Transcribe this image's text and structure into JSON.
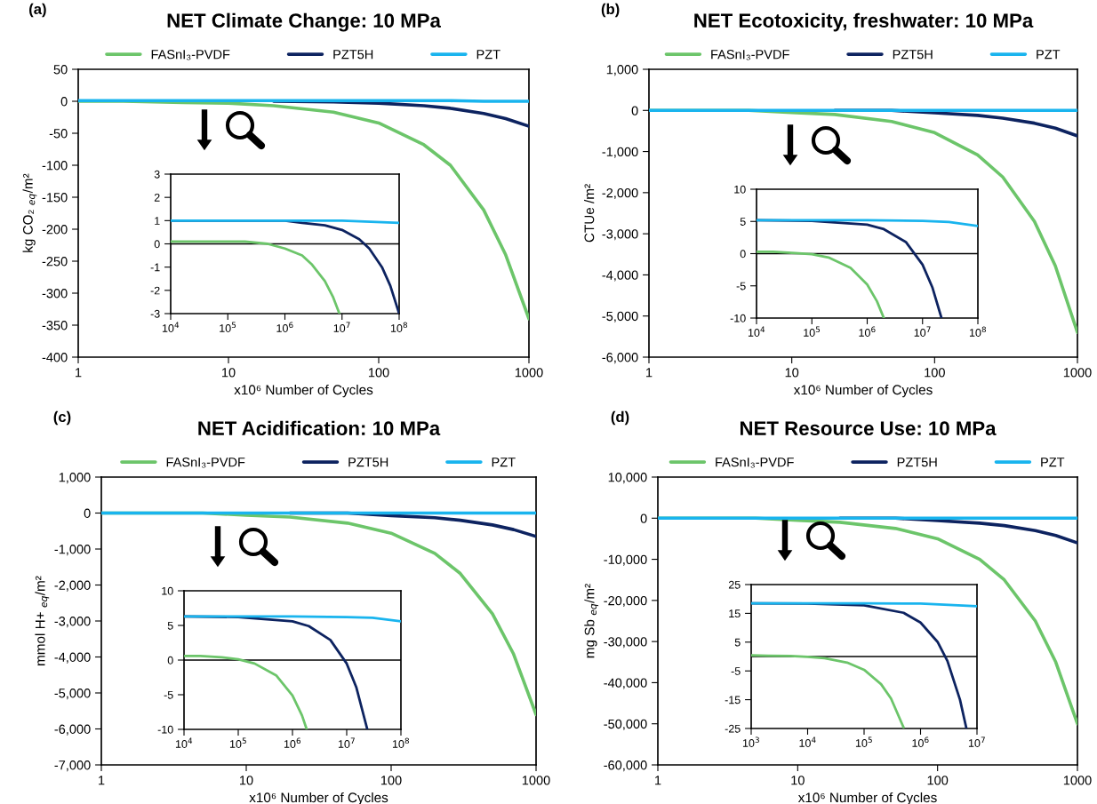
{
  "chart_data": [
    {
      "type": "line",
      "title": "NET Climate Change: 10 MPa",
      "xlabel": "x10⁶ Number of Cycles",
      "ylabel": "kg CO₂ $_{eq}$/m²",
      "annotations": [
        "(a)"
      ],
      "log": "x",
      "legend": "top",
      "xlim": [
        1,
        1000
      ],
      "xticks": [
        1,
        10,
        100,
        1000
      ],
      "ylim": [
        -400,
        50
      ],
      "yticks": [
        -400,
        -350,
        -300,
        -250,
        -200,
        -150,
        -100,
        -50,
        0,
        50
      ],
      "series": [
        {
          "name": "FASnI₃-PVDF",
          "color": "#6cc56a",
          "x": [
            1,
            2,
            5,
            10,
            20,
            50,
            100,
            200,
            300,
            500,
            700,
            1000
          ],
          "values": [
            0,
            0,
            -2,
            -3,
            -7,
            -17,
            -34,
            -68,
            -100,
            -170,
            -240,
            -340
          ]
        },
        {
          "name": "PZT5H",
          "color": "#0d2360",
          "x": [
            20,
            50,
            100,
            200,
            300,
            500,
            700,
            1000
          ],
          "values": [
            0,
            -1,
            -3,
            -7,
            -11,
            -19,
            -27,
            -39
          ]
        },
        {
          "name": "PZT",
          "color": "#19b4ee",
          "x": [
            1,
            2,
            5,
            10,
            20,
            50,
            100,
            200,
            300,
            500,
            700,
            1000
          ],
          "values": [
            1,
            1,
            1,
            1,
            1,
            1,
            1,
            1,
            1,
            0,
            0,
            0
          ]
        }
      ]
    },
    {
      "type": "line",
      "log": "x",
      "xlim": [
        10000,
        100000000
      ],
      "xticks": [
        {
          "value": 10000,
          "label": "10$^{4}$"
        },
        {
          "value": 100000,
          "label": "10$^{5}$"
        },
        {
          "value": 1000000,
          "label": "10$^{6}$"
        },
        {
          "value": 10000000,
          "label": "10$^{7}$"
        },
        {
          "value": 100000000,
          "label": "10$^{8}$"
        }
      ],
      "ylim": [
        -3,
        3
      ],
      "yticks": [
        -3,
        -2,
        -1,
        0,
        1,
        2,
        3
      ],
      "ref_lines": [
        {
          "axis": "y",
          "value": 0,
          "color": "#000000"
        }
      ],
      "series": [
        {
          "color": "#6cc56a",
          "x": [
            10000,
            20000,
            50000,
            100000,
            200000,
            500000,
            1000000,
            2000000,
            3000000,
            5000000,
            7000000,
            9000000
          ],
          "values": [
            0.1,
            0.1,
            0.1,
            0.1,
            0.1,
            0,
            -0.2,
            -0.5,
            -0.9,
            -1.6,
            -2.3,
            -3
          ]
        },
        {
          "color": "#0d2360",
          "x": [
            10000,
            100000,
            1000000,
            2000000,
            5000000,
            10000000,
            20000000,
            30000000,
            50000000,
            70000000,
            100000000
          ],
          "values": [
            1,
            1,
            1,
            0.9,
            0.8,
            0.6,
            0.2,
            -0.2,
            -1,
            -1.8,
            -3
          ]
        },
        {
          "color": "#19b4ee",
          "x": [
            10000,
            1000000,
            10000000,
            100000000
          ],
          "values": [
            1,
            1,
            1,
            0.9
          ]
        }
      ]
    },
    {
      "type": "line",
      "title": "NET Ecotoxicity, freshwater: 10 MPa",
      "xlabel": "x10⁶ Number of Cycles",
      "ylabel": "CTUe /m²",
      "annotations": [
        "(b)"
      ],
      "log": "x",
      "legend": "top",
      "xlim": [
        1,
        1000
      ],
      "xticks": [
        1,
        10,
        100,
        1000
      ],
      "ylim": [
        -6000,
        1000
      ],
      "yticks": [
        {
          "value": -6000,
          "label": "-6,000"
        },
        {
          "value": -5000,
          "label": "-5,000"
        },
        {
          "value": -4000,
          "label": "-4,000"
        },
        {
          "value": -3000,
          "label": "-3,000"
        },
        {
          "value": -2000,
          "label": "-2,000"
        },
        {
          "value": -1000,
          "label": "-1,000"
        },
        0,
        {
          "value": 1000,
          "label": "1,000"
        }
      ],
      "series": [
        {
          "name": "FASnI₃-PVDF",
          "color": "#6cc56a",
          "x": [
            1,
            2,
            5,
            10,
            20,
            50,
            100,
            200,
            300,
            500,
            700,
            1000
          ],
          "values": [
            0,
            0,
            0,
            -50,
            -100,
            -270,
            -540,
            -1080,
            -1620,
            -2700,
            -3780,
            -5400
          ]
        },
        {
          "name": "PZT5H",
          "color": "#0d2360",
          "x": [
            20,
            50,
            100,
            200,
            300,
            500,
            700,
            1000
          ],
          "values": [
            0,
            0,
            -60,
            -120,
            -190,
            -310,
            -430,
            -620
          ]
        },
        {
          "name": "PZT",
          "color": "#19b4ee",
          "x": [
            1,
            2,
            5,
            10,
            20,
            50,
            100,
            200,
            300,
            500,
            700,
            1000
          ],
          "values": [
            0,
            0,
            0,
            0,
            0,
            0,
            0,
            0,
            0,
            0,
            0,
            0
          ]
        }
      ]
    },
    {
      "type": "line",
      "log": "x",
      "xlim": [
        10000,
        100000000
      ],
      "xticks": [
        {
          "value": 10000,
          "label": "10$^{4}$"
        },
        {
          "value": 100000,
          "label": "10$^{5}$"
        },
        {
          "value": 1000000,
          "label": "10$^{6}$"
        },
        {
          "value": 10000000,
          "label": "10$^{7}$"
        },
        {
          "value": 100000000,
          "label": "10$^{8}$"
        }
      ],
      "ylim": [
        -10,
        10
      ],
      "yticks": [
        -10,
        -5,
        0,
        5,
        10
      ],
      "ref_lines": [
        {
          "axis": "y",
          "value": 0,
          "color": "#000000"
        }
      ],
      "series": [
        {
          "color": "#6cc56a",
          "x": [
            10000,
            20000,
            50000,
            100000,
            200000,
            500000,
            1000000,
            1500000,
            2000000
          ],
          "values": [
            0.3,
            0.3,
            0.1,
            -0.1,
            -0.6,
            -2.2,
            -4.8,
            -7.4,
            -10
          ]
        },
        {
          "color": "#0d2360",
          "x": [
            10000,
            100000,
            1000000,
            2000000,
            5000000,
            10000000,
            15000000,
            22000000
          ],
          "values": [
            5.2,
            5.1,
            4.5,
            3.8,
            1.8,
            -1.7,
            -5.2,
            -10
          ]
        },
        {
          "color": "#19b4ee",
          "x": [
            10000,
            1000000,
            10000000,
            30000000,
            100000000
          ],
          "values": [
            5.2,
            5.2,
            5.1,
            4.9,
            4.3
          ]
        }
      ]
    },
    {
      "type": "line",
      "title": "NET Acidification: 10 MPa",
      "xlabel": "x10⁶ Number of Cycles",
      "ylabel": "mmol H+ $_{eq}$/m²",
      "annotations": [
        "(c)"
      ],
      "log": "x",
      "legend": "top",
      "xlim": [
        1,
        1000
      ],
      "xticks": [
        1,
        10,
        100,
        1000
      ],
      "ylim": [
        -7000,
        1000
      ],
      "yticks": [
        {
          "value": -7000,
          "label": "-7,000"
        },
        {
          "value": -6000,
          "label": "-6,000"
        },
        {
          "value": -5000,
          "label": "-5,000"
        },
        {
          "value": -4000,
          "label": "-4,000"
        },
        {
          "value": -3000,
          "label": "-3,000"
        },
        {
          "value": -2000,
          "label": "-2,000"
        },
        {
          "value": -1000,
          "label": "-1,000"
        },
        0,
        {
          "value": 1000,
          "label": "1,000"
        }
      ],
      "series": [
        {
          "name": "FASnI₃-PVDF",
          "color": "#6cc56a",
          "x": [
            1,
            2,
            5,
            10,
            20,
            50,
            100,
            200,
            300,
            500,
            700,
            1000
          ],
          "values": [
            0,
            0,
            0,
            -60,
            -110,
            -280,
            -560,
            -1120,
            -1680,
            -2800,
            -3920,
            -5600
          ]
        },
        {
          "name": "PZT5H",
          "color": "#0d2360",
          "x": [
            20,
            50,
            100,
            200,
            300,
            500,
            700,
            1000
          ],
          "values": [
            0,
            0,
            -70,
            -130,
            -200,
            -330,
            -460,
            -650
          ]
        },
        {
          "name": "PZT",
          "color": "#19b4ee",
          "x": [
            1,
            2,
            5,
            10,
            20,
            50,
            100,
            200,
            300,
            500,
            700,
            1000
          ],
          "values": [
            0,
            0,
            0,
            0,
            0,
            0,
            0,
            0,
            0,
            0,
            0,
            0
          ]
        }
      ]
    },
    {
      "type": "line",
      "log": "x",
      "xlim": [
        10000,
        100000000
      ],
      "xticks": [
        {
          "value": 10000,
          "label": "10$^{4}$"
        },
        {
          "value": 100000,
          "label": "10$^{5}$"
        },
        {
          "value": 1000000,
          "label": "10$^{6}$"
        },
        {
          "value": 10000000,
          "label": "10$^{7}$"
        },
        {
          "value": 100000000,
          "label": "10$^{8}$"
        }
      ],
      "ylim": [
        -10,
        10
      ],
      "yticks": [
        -10,
        -5,
        0,
        5,
        10
      ],
      "ref_lines": [
        {
          "axis": "y",
          "value": 0,
          "color": "#000000"
        }
      ],
      "series": [
        {
          "color": "#6cc56a",
          "x": [
            10000,
            20000,
            50000,
            100000,
            200000,
            500000,
            1000000,
            1500000,
            1830000
          ],
          "values": [
            0.6,
            0.6,
            0.4,
            0.1,
            -0.5,
            -2.2,
            -5.1,
            -8,
            -10
          ]
        },
        {
          "color": "#0d2360",
          "x": [
            10000,
            100000,
            1000000,
            2000000,
            5000000,
            10000000,
            15000000,
            24000000
          ],
          "values": [
            6.3,
            6.2,
            5.6,
            4.9,
            2.9,
            -0.5,
            -3.9,
            -10
          ]
        },
        {
          "color": "#19b4ee",
          "x": [
            10000,
            1000000,
            10000000,
            30000000,
            100000000
          ],
          "values": [
            6.3,
            6.3,
            6.2,
            6.1,
            5.6
          ]
        }
      ]
    },
    {
      "type": "line",
      "title": "NET Resource Use: 10 MPa",
      "xlabel": "x10⁶ Number of Cycles",
      "ylabel": "mg Sb $_{eq}$/m²",
      "annotations": [
        "(d)"
      ],
      "log": "x",
      "legend": "top",
      "xlim": [
        1,
        1000
      ],
      "xticks": [
        1,
        10,
        100,
        1000
      ],
      "ylim": [
        -60000,
        10000
      ],
      "yticks": [
        {
          "value": -60000,
          "label": "-60,000"
        },
        {
          "value": -50000,
          "label": "-50,000"
        },
        {
          "value": -40000,
          "label": "-40,000"
        },
        {
          "value": -30000,
          "label": "-30,000"
        },
        {
          "value": -20000,
          "label": "-20,000"
        },
        {
          "value": -10000,
          "label": "-10,000"
        },
        0,
        {
          "value": 10000,
          "label": "10,000"
        }
      ],
      "series": [
        {
          "name": "FASnI₃-PVDF",
          "color": "#6cc56a",
          "x": [
            1,
            2,
            5,
            10,
            20,
            50,
            100,
            200,
            300,
            500,
            700,
            1000
          ],
          "values": [
            0,
            0,
            0,
            -500,
            -1000,
            -2500,
            -5000,
            -10000,
            -15000,
            -25000,
            -35000,
            -50000
          ]
        },
        {
          "name": "PZT5H",
          "color": "#0d2360",
          "x": [
            20,
            50,
            100,
            200,
            300,
            500,
            700,
            1000
          ],
          "values": [
            0,
            0,
            -600,
            -1200,
            -1800,
            -3000,
            -4200,
            -6000
          ]
        },
        {
          "name": "PZT",
          "color": "#19b4ee",
          "x": [
            1,
            2,
            5,
            10,
            20,
            50,
            100,
            200,
            300,
            500,
            700,
            1000
          ],
          "values": [
            0,
            0,
            0,
            0,
            0,
            0,
            0,
            0,
            0,
            0,
            0,
            0
          ]
        }
      ]
    },
    {
      "type": "line",
      "log": "x",
      "xlim": [
        1000,
        10000000
      ],
      "xticks": [
        {
          "value": 1000,
          "label": "10$^{3}$"
        },
        {
          "value": 10000,
          "label": "10$^{4}$"
        },
        {
          "value": 100000,
          "label": "10$^{5}$"
        },
        {
          "value": 1000000,
          "label": "10$^{6}$"
        },
        {
          "value": 10000000,
          "label": "10$^{7}$"
        }
      ],
      "ylim": [
        -25,
        25
      ],
      "yticks": [
        -25,
        -15,
        -5,
        5,
        15,
        25
      ],
      "ref_lines": [
        {
          "axis": "y",
          "value": 0,
          "color": "#000000"
        }
      ],
      "series": [
        {
          "color": "#6cc56a",
          "x": [
            1000,
            2000,
            5000,
            10000,
            20000,
            50000,
            100000,
            200000,
            300000,
            500000
          ],
          "values": [
            0.4,
            0.3,
            0.2,
            -0.1,
            -0.6,
            -2.1,
            -4.6,
            -9.6,
            -14.6,
            -24.6
          ]
        },
        {
          "color": "#0d2360",
          "x": [
            1000,
            10000,
            100000,
            500000,
            1000000,
            2000000,
            3000000,
            5000000,
            6500000
          ],
          "values": [
            18.5,
            18.4,
            17.8,
            15.2,
            11.8,
            5.1,
            -1.6,
            -15,
            -25
          ]
        },
        {
          "color": "#19b4ee",
          "x": [
            1000,
            100000,
            1000000,
            10000000
          ],
          "values": [
            18.5,
            18.5,
            18.4,
            17.5
          ]
        }
      ]
    }
  ]
}
